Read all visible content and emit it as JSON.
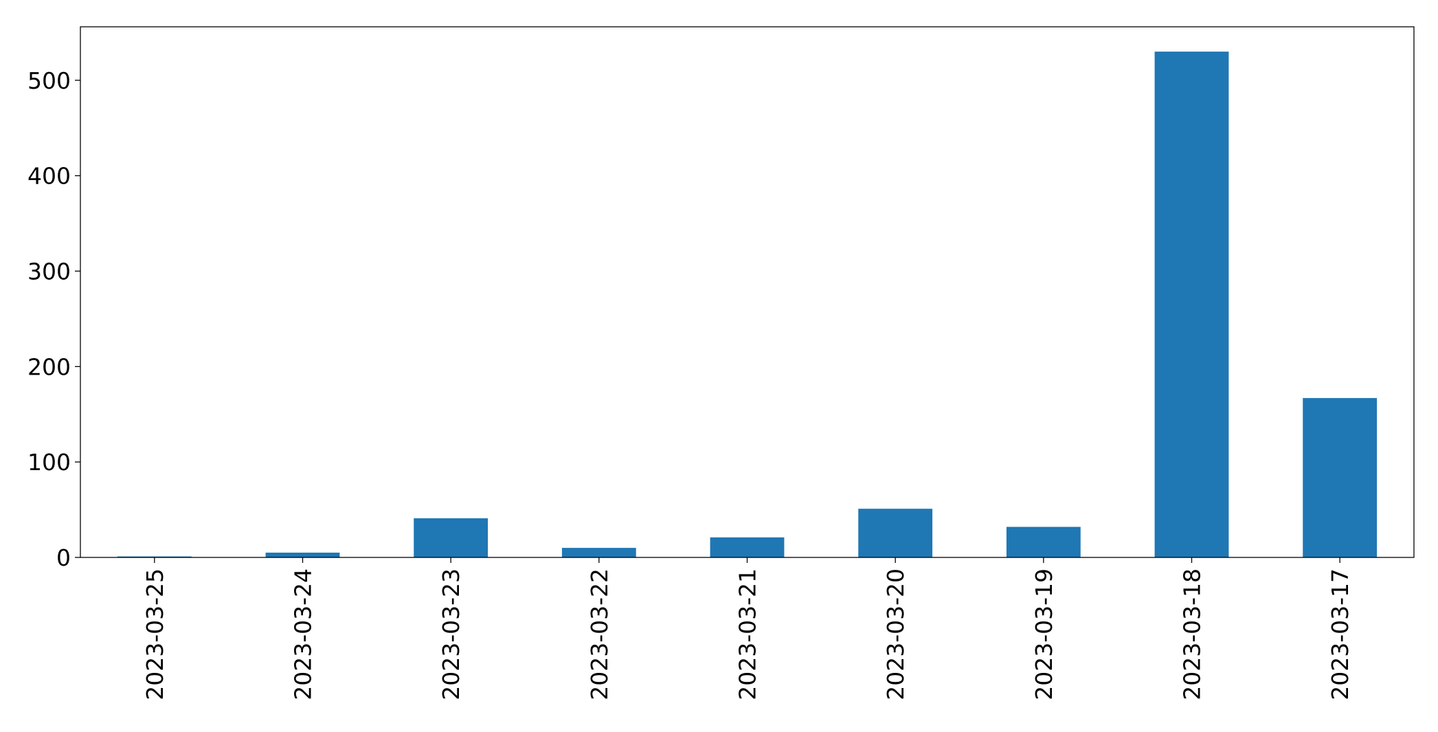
{
  "chart_data": {
    "type": "bar",
    "title": "",
    "xlabel": "",
    "ylabel": "",
    "categories": [
      "2023-03-25",
      "2023-03-24",
      "2023-03-23",
      "2023-03-22",
      "2023-03-21",
      "2023-03-20",
      "2023-03-19",
      "2023-03-18",
      "2023-03-17"
    ],
    "values": [
      1,
      5,
      41,
      10,
      21,
      51,
      32,
      530,
      167
    ],
    "ylim": [
      0,
      556
    ],
    "yticks": [
      0,
      100,
      200,
      300,
      400,
      500
    ],
    "grid": false,
    "legend": "none",
    "bar_color": "#1f77b4"
  }
}
